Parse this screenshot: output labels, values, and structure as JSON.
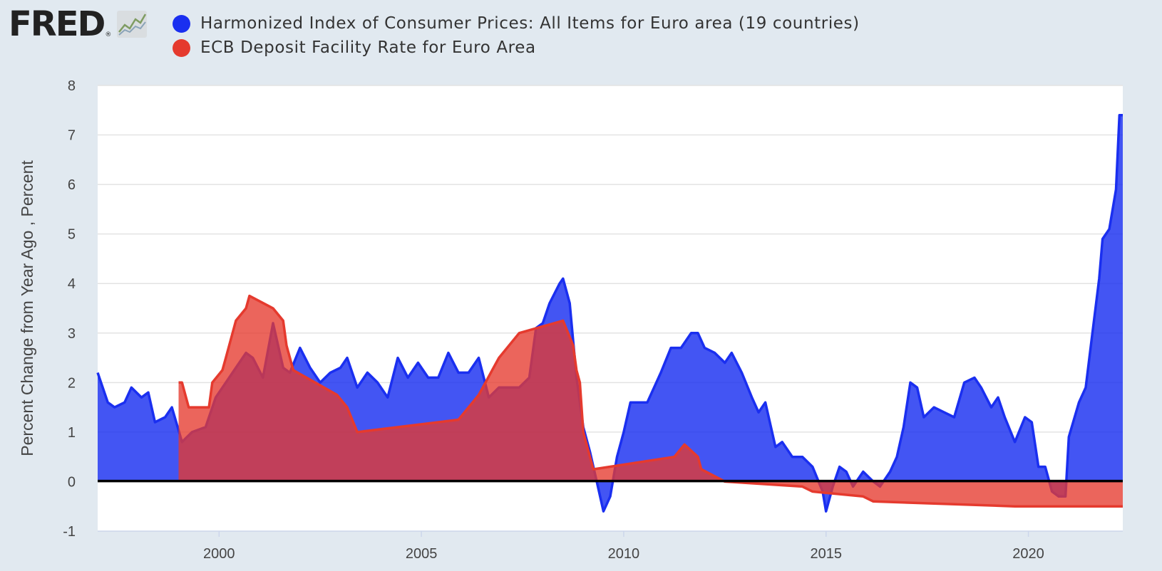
{
  "header": {
    "logo_text": "FRED",
    "logo_icon": "line-chart-icon"
  },
  "legend": [
    {
      "label": "Harmonized Index of Consumer Prices: All Items for Euro area (19 countries)",
      "color": "#1a2ff0"
    },
    {
      "label": "ECB Deposit Facility Rate for Euro Area",
      "color": "#e53a2e"
    }
  ],
  "chart_data": {
    "type": "area",
    "ylabel": "Percent Change from Year Ago , Percent",
    "xlabel": "",
    "x_ticks": [
      "2000",
      "2005",
      "2010",
      "2015",
      "2020"
    ],
    "y_ticks": [
      "-1",
      "0",
      "1",
      "2",
      "3",
      "4",
      "5",
      "6",
      "7",
      "8"
    ],
    "xlim": [
      "1997-01",
      "2022-05"
    ],
    "ylim": [
      -1,
      8
    ],
    "grid": true,
    "zero_line": true,
    "series": [
      {
        "name": "Harmonized Index of Consumer Prices: All Items for Euro area (19 countries)",
        "color": "#1a2ff0",
        "points": [
          [
            "1997-01",
            2.2
          ],
          [
            "1997-04",
            1.6
          ],
          [
            "1997-06",
            1.5
          ],
          [
            "1997-09",
            1.6
          ],
          [
            "1997-11",
            1.9
          ],
          [
            "1998-02",
            1.7
          ],
          [
            "1998-04",
            1.8
          ],
          [
            "1998-06",
            1.2
          ],
          [
            "1998-09",
            1.3
          ],
          [
            "1998-11",
            1.5
          ],
          [
            "1999-02",
            0.8
          ],
          [
            "1999-05",
            1.0
          ],
          [
            "1999-09",
            1.1
          ],
          [
            "1999-12",
            1.7
          ],
          [
            "2000-03",
            2.0
          ],
          [
            "2000-06",
            2.3
          ],
          [
            "2000-09",
            2.6
          ],
          [
            "2000-11",
            2.5
          ],
          [
            "2001-02",
            2.1
          ],
          [
            "2001-05",
            3.2
          ],
          [
            "2001-08",
            2.3
          ],
          [
            "2001-10",
            2.2
          ],
          [
            "2002-01",
            2.7
          ],
          [
            "2002-04",
            2.3
          ],
          [
            "2002-07",
            2.0
          ],
          [
            "2002-10",
            2.2
          ],
          [
            "2003-01",
            2.3
          ],
          [
            "2003-03",
            2.5
          ],
          [
            "2003-06",
            1.9
          ],
          [
            "2003-09",
            2.2
          ],
          [
            "2003-12",
            2.0
          ],
          [
            "2004-03",
            1.7
          ],
          [
            "2004-06",
            2.5
          ],
          [
            "2004-09",
            2.1
          ],
          [
            "2004-12",
            2.4
          ],
          [
            "2005-03",
            2.1
          ],
          [
            "2005-06",
            2.1
          ],
          [
            "2005-09",
            2.6
          ],
          [
            "2005-12",
            2.2
          ],
          [
            "2006-03",
            2.2
          ],
          [
            "2006-06",
            2.5
          ],
          [
            "2006-09",
            1.7
          ],
          [
            "2006-12",
            1.9
          ],
          [
            "2007-03",
            1.9
          ],
          [
            "2007-06",
            1.9
          ],
          [
            "2007-09",
            2.1
          ],
          [
            "2007-11",
            3.1
          ],
          [
            "2008-01",
            3.2
          ],
          [
            "2008-03",
            3.6
          ],
          [
            "2008-06",
            4.0
          ],
          [
            "2008-07",
            4.1
          ],
          [
            "2008-09",
            3.6
          ],
          [
            "2008-11",
            2.1
          ],
          [
            "2009-01",
            1.1
          ],
          [
            "2009-03",
            0.6
          ],
          [
            "2009-05",
            0.0
          ],
          [
            "2009-07",
            -0.6
          ],
          [
            "2009-09",
            -0.3
          ],
          [
            "2009-11",
            0.5
          ],
          [
            "2010-01",
            1.0
          ],
          [
            "2010-03",
            1.6
          ],
          [
            "2010-05",
            1.6
          ],
          [
            "2010-08",
            1.6
          ],
          [
            "2010-10",
            1.9
          ],
          [
            "2010-12",
            2.2
          ],
          [
            "2011-03",
            2.7
          ],
          [
            "2011-06",
            2.7
          ],
          [
            "2011-09",
            3.0
          ],
          [
            "2011-11",
            3.0
          ],
          [
            "2012-01",
            2.7
          ],
          [
            "2012-04",
            2.6
          ],
          [
            "2012-07",
            2.4
          ],
          [
            "2012-09",
            2.6
          ],
          [
            "2012-12",
            2.2
          ],
          [
            "2013-03",
            1.7
          ],
          [
            "2013-05",
            1.4
          ],
          [
            "2013-07",
            1.6
          ],
          [
            "2013-10",
            0.7
          ],
          [
            "2013-12",
            0.8
          ],
          [
            "2014-03",
            0.5
          ],
          [
            "2014-06",
            0.5
          ],
          [
            "2014-09",
            0.3
          ],
          [
            "2014-12",
            -0.2
          ],
          [
            "2015-01",
            -0.6
          ],
          [
            "2015-03",
            -0.1
          ],
          [
            "2015-05",
            0.3
          ],
          [
            "2015-07",
            0.2
          ],
          [
            "2015-09",
            -0.1
          ],
          [
            "2015-12",
            0.2
          ],
          [
            "2016-03",
            0.0
          ],
          [
            "2016-05",
            -0.1
          ],
          [
            "2016-08",
            0.2
          ],
          [
            "2016-10",
            0.5
          ],
          [
            "2016-12",
            1.1
          ],
          [
            "2017-02",
            2.0
          ],
          [
            "2017-04",
            1.9
          ],
          [
            "2017-06",
            1.3
          ],
          [
            "2017-09",
            1.5
          ],
          [
            "2017-12",
            1.4
          ],
          [
            "2018-03",
            1.3
          ],
          [
            "2018-06",
            2.0
          ],
          [
            "2018-09",
            2.1
          ],
          [
            "2018-11",
            1.9
          ],
          [
            "2019-02",
            1.5
          ],
          [
            "2019-04",
            1.7
          ],
          [
            "2019-06",
            1.3
          ],
          [
            "2019-09",
            0.8
          ],
          [
            "2019-12",
            1.3
          ],
          [
            "2020-02",
            1.2
          ],
          [
            "2020-04",
            0.3
          ],
          [
            "2020-06",
            0.3
          ],
          [
            "2020-08",
            -0.2
          ],
          [
            "2020-10",
            -0.3
          ],
          [
            "2020-12",
            -0.3
          ],
          [
            "2021-01",
            0.9
          ],
          [
            "2021-04",
            1.6
          ],
          [
            "2021-06",
            1.9
          ],
          [
            "2021-08",
            3.0
          ],
          [
            "2021-10",
            4.1
          ],
          [
            "2021-11",
            4.9
          ],
          [
            "2022-01",
            5.1
          ],
          [
            "2022-03",
            5.9
          ],
          [
            "2022-04",
            7.4
          ],
          [
            "2022-05",
            7.4
          ]
        ]
      },
      {
        "name": "ECB Deposit Facility Rate for Euro Area",
        "color": "#e53a2e",
        "points": [
          [
            "1999-01",
            2.0
          ],
          [
            "1999-02",
            2.0
          ],
          [
            "1999-04",
            1.5
          ],
          [
            "1999-10",
            1.5
          ],
          [
            "1999-11",
            2.0
          ],
          [
            "2000-02",
            2.25
          ],
          [
            "2000-03",
            2.5
          ],
          [
            "2000-04",
            2.75
          ],
          [
            "2000-06",
            3.25
          ],
          [
            "2000-09",
            3.5
          ],
          [
            "2000-10",
            3.75
          ],
          [
            "2001-05",
            3.5
          ],
          [
            "2001-08",
            3.25
          ],
          [
            "2001-09",
            2.75
          ],
          [
            "2001-11",
            2.25
          ],
          [
            "2002-12",
            1.75
          ],
          [
            "2003-03",
            1.5
          ],
          [
            "2003-06",
            1.0
          ],
          [
            "2005-12",
            1.25
          ],
          [
            "2006-03",
            1.5
          ],
          [
            "2006-06",
            1.75
          ],
          [
            "2006-08",
            2.0
          ],
          [
            "2006-10",
            2.25
          ],
          [
            "2006-12",
            2.5
          ],
          [
            "2007-03",
            2.75
          ],
          [
            "2007-06",
            3.0
          ],
          [
            "2008-07",
            3.25
          ],
          [
            "2008-10",
            2.75
          ],
          [
            "2008-11",
            2.25
          ],
          [
            "2008-12",
            2.0
          ],
          [
            "2009-01",
            1.0
          ],
          [
            "2009-03",
            0.5
          ],
          [
            "2009-04",
            0.25
          ],
          [
            "2011-04",
            0.5
          ],
          [
            "2011-07",
            0.75
          ],
          [
            "2011-11",
            0.5
          ],
          [
            "2011-12",
            0.25
          ],
          [
            "2012-07",
            0.0
          ],
          [
            "2014-06",
            -0.1
          ],
          [
            "2014-09",
            -0.2
          ],
          [
            "2015-12",
            -0.3
          ],
          [
            "2016-03",
            -0.4
          ],
          [
            "2019-09",
            -0.5
          ],
          [
            "2022-05",
            -0.5
          ]
        ]
      }
    ]
  }
}
